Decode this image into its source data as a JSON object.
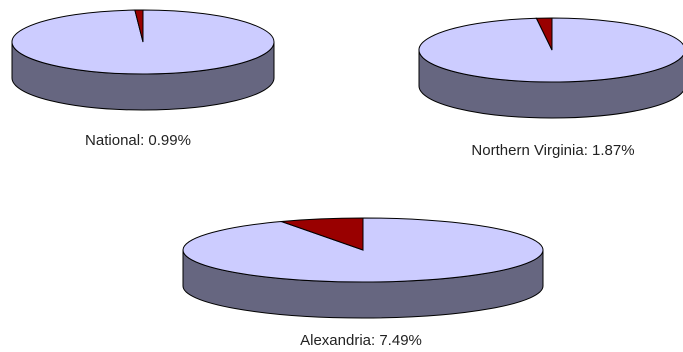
{
  "chart_data": [
    {
      "type": "pie",
      "label": "National: 0.99%",
      "slices": [
        {
          "name": "highlighted",
          "value": 0.99
        },
        {
          "name": "remainder",
          "value": 99.01
        }
      ]
    },
    {
      "type": "pie",
      "label": "Northern Virginia: 1.87%",
      "slices": [
        {
          "name": "highlighted",
          "value": 1.87
        },
        {
          "name": "remainder",
          "value": 98.13
        }
      ]
    },
    {
      "type": "pie",
      "label": "Alexandria: 7.49%",
      "slices": [
        {
          "name": "highlighted",
          "value": 7.49
        },
        {
          "name": "remainder",
          "value": 92.51
        }
      ]
    }
  ],
  "colors": {
    "slice_top": "#ccccff",
    "slice_side": "#666680",
    "highlight_top": "#990000",
    "highlight_side": "#4d0000",
    "outline": "#000000"
  }
}
